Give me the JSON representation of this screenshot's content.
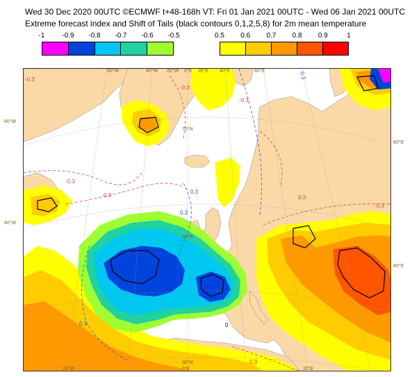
{
  "header": {
    "line1": "Wed 30 Dec 2020 00UTC ©ECMWF t+48-168h  VT: Fri 01 Jan 2021 00UTC - Wed 06 Jan 2021 00UTC",
    "line2": "Extreme forecast index and Shift of Tails (black contours 0,1,2,5,8) for 2m mean temperature"
  },
  "legend_cold": {
    "labels": [
      "-1",
      "-0.9",
      "-0.8",
      "-0.7",
      "-0.6",
      "-0.5"
    ],
    "colors": [
      "#ff00ff",
      "#0044dd",
      "#00c8f0",
      "#20d2a0",
      "#a0ff30"
    ]
  },
  "legend_warm": {
    "labels": [
      "0.5",
      "0.6",
      "0.7",
      "0.8",
      "0.9",
      "1"
    ],
    "colors": [
      "#ffff00",
      "#ffcc00",
      "#ff9900",
      "#ff5500",
      "#ff0000"
    ]
  },
  "map": {
    "colors": {
      "ocean": "#ffffff",
      "land": "#fbd9a6",
      "efi_05": "#ffff00",
      "efi_06": "#ffcc00",
      "efi_07": "#ff9900",
      "efi_08": "#ff5500",
      "efi_cold_05": "#a0ff30",
      "efi_cold_06": "#20d2a0",
      "efi_cold_07": "#00c8f0",
      "efi_cold_08": "#0044dd"
    },
    "lon_labels": [
      "60°W",
      "40°W",
      "20°W",
      "0°E",
      "20°E",
      "40°E",
      "60°E",
      "20°W",
      "0°E",
      "20°E"
    ],
    "lat_labels_left": [
      "60°W",
      "40°W"
    ],
    "lat_labels_right": [
      "60°E",
      "40°E"
    ],
    "parallel_labels": [
      "70°N",
      "50°N",
      "30°N"
    ],
    "contour_labels": [
      "-0.3",
      "-0.3",
      "-0.3",
      "-0.3",
      "-0.3",
      "0.3",
      "0.3",
      "0.3",
      "0.3",
      "0.3",
      "0.3",
      "0.3",
      "0"
    ]
  }
}
